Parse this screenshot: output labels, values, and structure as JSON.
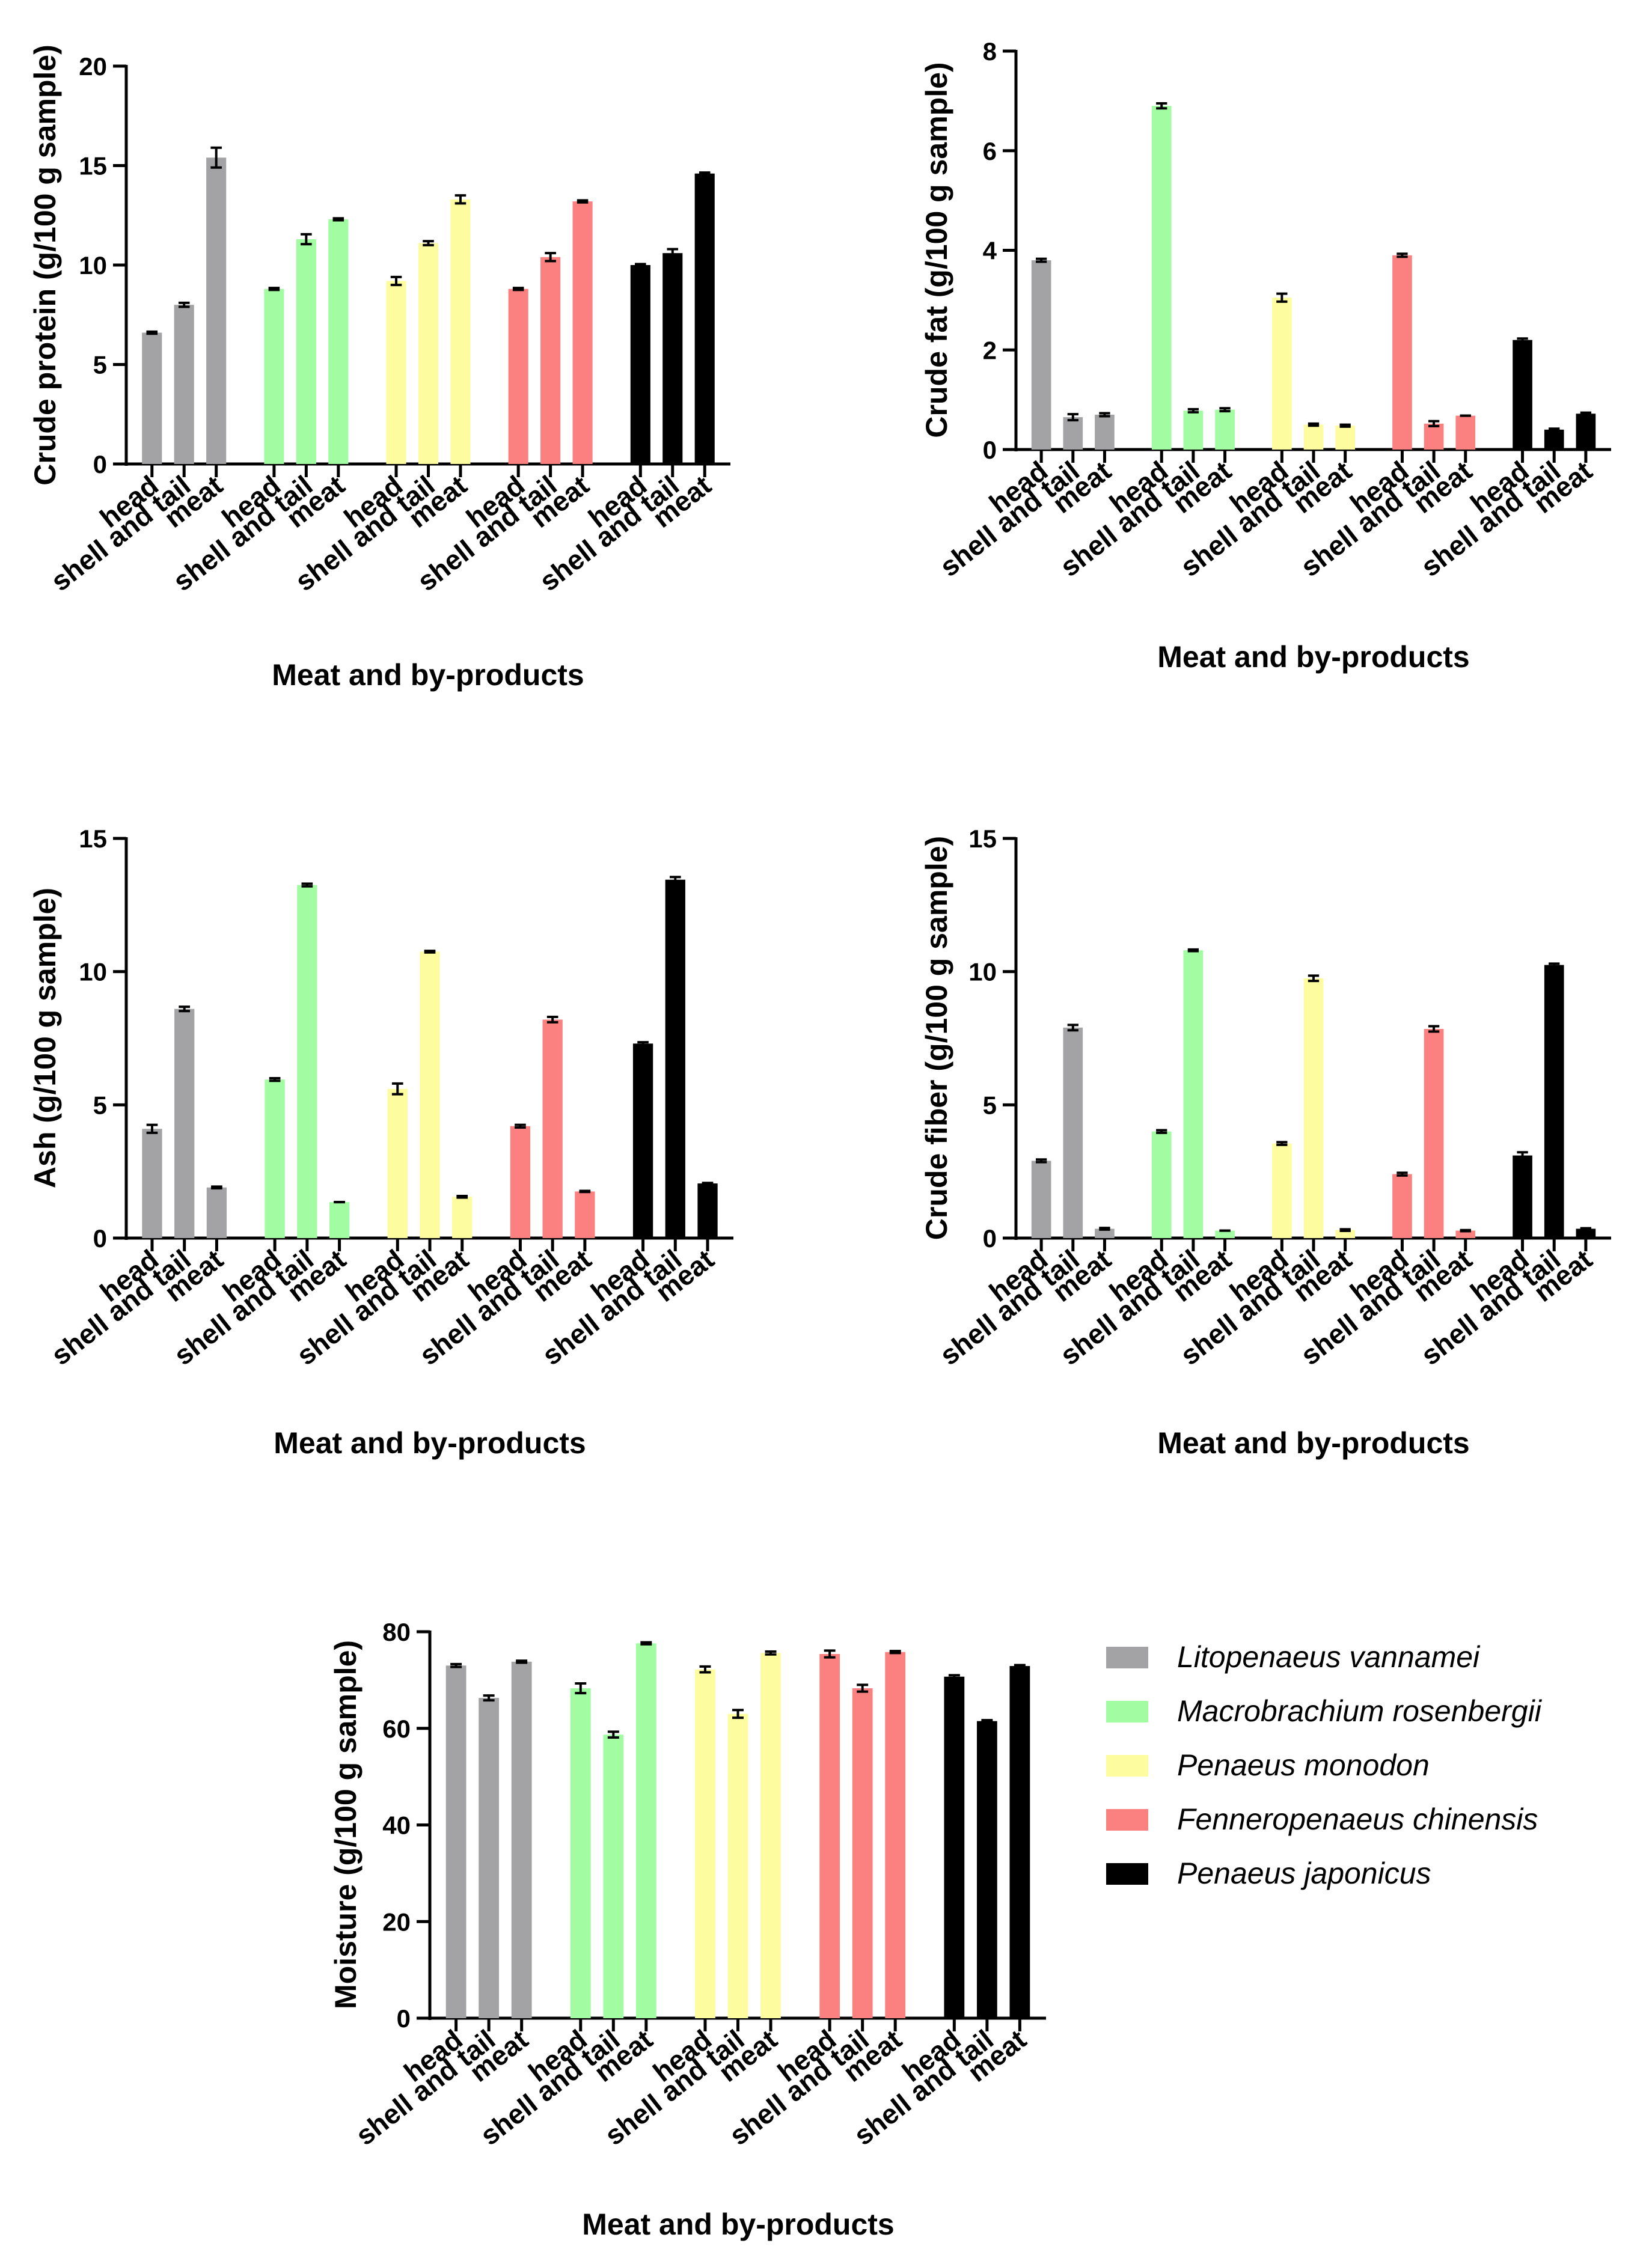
{
  "colors": {
    "Litopenaeus vannamei": "#a3a3a6",
    "Macrobrachium rosenbergii": "#a2fca2",
    "Penaeus monodon": "#fdfc9e",
    "Fenneropenaeus chinensis": "#fb8080",
    "Penaeus japonicus": "#000000",
    "axis": "#000000",
    "error_bar": "#000000"
  },
  "legend": {
    "position": "bottom-right",
    "items": [
      {
        "label": "Litopenaeus vannamei",
        "color": "#a3a3a6"
      },
      {
        "label": "Macrobrachium rosenbergii",
        "color": "#a2fca2"
      },
      {
        "label": "Penaeus monodon",
        "color": "#fdfc9e"
      },
      {
        "label": "Fenneropenaeus chinensis",
        "color": "#fb8080"
      },
      {
        "label": "Penaeus japonicus",
        "color": "#000000"
      }
    ]
  },
  "chart_data": [
    {
      "type": "bar",
      "ylabel": "Crude protein (g/100 g sample)",
      "xlabel": "Meat and by-products",
      "ylim": [
        0,
        20
      ],
      "yticks": [
        "0",
        "5",
        "10",
        "15",
        "20"
      ],
      "categories": [
        "head",
        "shell and tail",
        "meat"
      ],
      "grid": false,
      "series": [
        {
          "name": "Litopenaeus vannamei",
          "values": [
            6.6,
            8.0,
            15.4
          ],
          "errors": [
            0.05,
            0.1,
            0.5
          ]
        },
        {
          "name": "Macrobrachium rosenbergii",
          "values": [
            8.8,
            11.3,
            12.3
          ],
          "errors": [
            0.05,
            0.25,
            0.05
          ]
        },
        {
          "name": "Penaeus monodon",
          "values": [
            9.2,
            11.1,
            13.3
          ],
          "errors": [
            0.2,
            0.1,
            0.2
          ]
        },
        {
          "name": "Fenneropenaeus chinensis",
          "values": [
            8.8,
            10.4,
            13.2
          ],
          "errors": [
            0.05,
            0.2,
            0.05
          ]
        },
        {
          "name": "Penaeus japonicus",
          "values": [
            10.0,
            10.6,
            14.6
          ],
          "errors": [
            0.05,
            0.2,
            0.05
          ]
        }
      ]
    },
    {
      "type": "bar",
      "ylabel": "Crude fat (g/100 g sample)",
      "xlabel": "Meat and by-products",
      "ylim": [
        0,
        8
      ],
      "yticks": [
        "0",
        "2",
        "4",
        "6",
        "8"
      ],
      "categories": [
        "head",
        "shell and tail",
        "meat"
      ],
      "grid": false,
      "series": [
        {
          "name": "Litopenaeus vannamei",
          "values": [
            3.8,
            0.65,
            0.7
          ],
          "errors": [
            0.03,
            0.06,
            0.03
          ]
        },
        {
          "name": "Macrobrachium rosenbergii",
          "values": [
            6.9,
            0.78,
            0.8
          ],
          "errors": [
            0.05,
            0.03,
            0.03
          ]
        },
        {
          "name": "Penaeus monodon",
          "values": [
            3.05,
            0.5,
            0.48
          ],
          "errors": [
            0.08,
            0.02,
            0.02
          ]
        },
        {
          "name": "Fenneropenaeus chinensis",
          "values": [
            3.9,
            0.52,
            0.68
          ],
          "errors": [
            0.03,
            0.05,
            0.0
          ]
        },
        {
          "name": "Penaeus japonicus",
          "values": [
            2.2,
            0.4,
            0.72
          ],
          "errors": [
            0.03,
            0.02,
            0.02
          ]
        }
      ]
    },
    {
      "type": "bar",
      "ylabel": "Ash (g/100 g sample)",
      "xlabel": "Meat and by-products",
      "ylim": [
        0,
        15
      ],
      "yticks": [
        "0",
        "5",
        "10",
        "15"
      ],
      "categories": [
        "head",
        "shell and tail",
        "meat"
      ],
      "grid": false,
      "series": [
        {
          "name": "Litopenaeus vannamei",
          "values": [
            4.1,
            8.6,
            1.9
          ],
          "errors": [
            0.15,
            0.08,
            0.03
          ]
        },
        {
          "name": "Macrobrachium rosenbergii",
          "values": [
            5.95,
            13.25,
            1.35
          ],
          "errors": [
            0.05,
            0.05,
            0.0
          ]
        },
        {
          "name": "Penaeus monodon",
          "values": [
            5.6,
            10.75,
            1.55
          ],
          "errors": [
            0.2,
            0.03,
            0.03
          ]
        },
        {
          "name": "Fenneropenaeus chinensis",
          "values": [
            4.2,
            8.2,
            1.75
          ],
          "errors": [
            0.05,
            0.1,
            0.02
          ]
        },
        {
          "name": "Penaeus japonicus",
          "values": [
            7.3,
            13.45,
            2.05
          ],
          "errors": [
            0.05,
            0.1,
            0.02
          ]
        }
      ]
    },
    {
      "type": "bar",
      "ylabel": "Crude fiber (g/100 g sample)",
      "xlabel": "Meat and by-products",
      "ylim": [
        0,
        15
      ],
      "yticks": [
        "0",
        "5",
        "10",
        "15"
      ],
      "categories": [
        "head",
        "shell and tail",
        "meat"
      ],
      "grid": false,
      "series": [
        {
          "name": "Litopenaeus vannamei",
          "values": [
            2.9,
            7.9,
            0.35
          ],
          "errors": [
            0.05,
            0.1,
            0.03
          ]
        },
        {
          "name": "Macrobrachium rosenbergii",
          "values": [
            4.0,
            10.8,
            0.28
          ],
          "errors": [
            0.05,
            0.03,
            0.0
          ]
        },
        {
          "name": "Penaeus monodon",
          "values": [
            3.55,
            9.75,
            0.3
          ],
          "errors": [
            0.05,
            0.1,
            0.03
          ]
        },
        {
          "name": "Fenneropenaeus chinensis",
          "values": [
            2.4,
            7.85,
            0.28
          ],
          "errors": [
            0.05,
            0.1,
            0.02
          ]
        },
        {
          "name": "Penaeus japonicus",
          "values": [
            3.1,
            10.25,
            0.35
          ],
          "errors": [
            0.12,
            0.05,
            0.02
          ]
        }
      ]
    },
    {
      "type": "bar",
      "ylabel": "Moisture (g/100 g sample)",
      "xlabel": "Meat and by-products",
      "ylim": [
        0,
        80
      ],
      "yticks": [
        "0",
        "20",
        "40",
        "60",
        "80"
      ],
      "categories": [
        "head",
        "shell and tail",
        "meat"
      ],
      "grid": false,
      "series": [
        {
          "name": "Litopenaeus vannamei",
          "values": [
            73.0,
            66.3,
            73.8
          ],
          "errors": [
            0.3,
            0.5,
            0.2
          ]
        },
        {
          "name": "Macrobrachium rosenbergii",
          "values": [
            68.3,
            58.7,
            77.6
          ],
          "errors": [
            1.0,
            0.6,
            0.2
          ]
        },
        {
          "name": "Penaeus monodon",
          "values": [
            72.2,
            63.0,
            75.6
          ],
          "errors": [
            0.6,
            0.8,
            0.3
          ]
        },
        {
          "name": "Fenneropenaeus chinensis",
          "values": [
            75.4,
            68.3,
            75.8
          ],
          "errors": [
            0.7,
            0.7,
            0.2
          ]
        },
        {
          "name": "Penaeus japonicus",
          "values": [
            70.7,
            61.5,
            72.9
          ],
          "errors": [
            0.3,
            0.2,
            0.2
          ]
        }
      ]
    }
  ]
}
